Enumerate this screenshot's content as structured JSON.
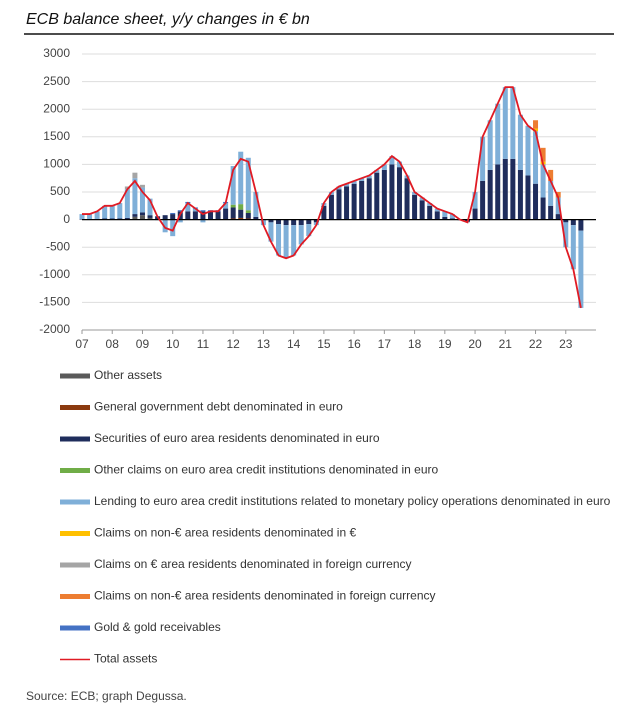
{
  "chart_data": {
    "type": "stacked_bar",
    "title": "ECB balance sheet, y/y changes in € bn",
    "source": "Source: ECB; graph Degussa.",
    "x": [
      2007,
      2007.25,
      2007.5,
      2007.75,
      2008,
      2008.25,
      2008.5,
      2008.75,
      2009,
      2009.25,
      2009.5,
      2009.75,
      2010,
      2010.25,
      2010.5,
      2010.75,
      2011,
      2011.25,
      2011.5,
      2011.75,
      2012,
      2012.25,
      2012.5,
      2012.75,
      2013,
      2013.25,
      2013.5,
      2013.75,
      2014,
      2014.25,
      2014.5,
      2014.75,
      2015,
      2015.25,
      2015.5,
      2015.75,
      2016,
      2016.25,
      2016.5,
      2016.75,
      2017,
      2017.25,
      2017.5,
      2017.75,
      2018,
      2018.25,
      2018.5,
      2018.75,
      2019,
      2019.25,
      2019.5,
      2019.75,
      2020,
      2020.25,
      2020.5,
      2020.75,
      2021,
      2021.25,
      2021.5,
      2021.75,
      2022,
      2022.25,
      2022.5,
      2022.75,
      2023,
      2023.25,
      2023.5
    ],
    "xlim": [
      2007,
      2024
    ],
    "xticks": [
      {
        "value": 2007,
        "label": "07"
      },
      {
        "value": 2008,
        "label": "08"
      },
      {
        "value": 2009,
        "label": "09"
      },
      {
        "value": 2010,
        "label": "10"
      },
      {
        "value": 2011,
        "label": "11"
      },
      {
        "value": 2012,
        "label": "12"
      },
      {
        "value": 2013,
        "label": "13"
      },
      {
        "value": 2014,
        "label": "14"
      },
      {
        "value": 2015,
        "label": "15"
      },
      {
        "value": 2016,
        "label": "16"
      },
      {
        "value": 2017,
        "label": "17"
      },
      {
        "value": 2018,
        "label": "18"
      },
      {
        "value": 2019,
        "label": "19"
      },
      {
        "value": 2020,
        "label": "20"
      },
      {
        "value": 2021,
        "label": "21"
      },
      {
        "value": 2022,
        "label": "22"
      },
      {
        "value": 2023,
        "label": "23"
      }
    ],
    "ylim": [
      -2000,
      3000
    ],
    "yticks": [
      -2000,
      -1500,
      -1000,
      -500,
      0,
      500,
      1000,
      1500,
      2000,
      2500,
      3000
    ],
    "grid": true,
    "series": [
      {
        "name": "Other assets",
        "color": "#5a5a5a",
        "values": [
          0,
          0,
          0,
          0,
          0,
          0,
          0,
          50,
          80,
          30,
          0,
          0,
          0,
          0,
          0,
          0,
          0,
          0,
          0,
          0,
          0,
          0,
          0,
          0,
          0,
          0,
          0,
          0,
          0,
          0,
          0,
          0,
          0,
          0,
          0,
          0,
          0,
          0,
          0,
          0,
          0,
          0,
          0,
          0,
          0,
          0,
          0,
          0,
          0,
          0,
          0,
          0,
          0,
          0,
          0,
          0,
          0,
          0,
          0,
          0,
          0,
          0,
          0,
          0,
          0,
          0,
          0
        ]
      },
      {
        "name": "General government debt denominated in euro",
        "color": "#8b3a0f",
        "values": [
          0,
          0,
          0,
          0,
          0,
          0,
          0,
          0,
          0,
          0,
          0,
          0,
          0,
          0,
          0,
          0,
          0,
          0,
          0,
          0,
          20,
          30,
          20,
          0,
          0,
          0,
          0,
          0,
          0,
          0,
          0,
          0,
          0,
          0,
          0,
          0,
          0,
          0,
          0,
          0,
          0,
          0,
          0,
          0,
          0,
          0,
          0,
          0,
          0,
          0,
          0,
          0,
          0,
          0,
          0,
          0,
          0,
          0,
          0,
          0,
          0,
          0,
          0,
          0,
          0,
          0,
          0
        ]
      },
      {
        "name": "Securities of euro area residents denominated in euro",
        "color": "#1f2d5c",
        "values": [
          10,
          10,
          10,
          20,
          20,
          20,
          30,
          50,
          50,
          50,
          60,
          80,
          100,
          150,
          150,
          150,
          150,
          150,
          150,
          200,
          200,
          150,
          100,
          50,
          0,
          -50,
          -80,
          -100,
          -100,
          -100,
          -80,
          -50,
          250,
          450,
          550,
          600,
          650,
          700,
          750,
          850,
          900,
          1000,
          950,
          750,
          450,
          350,
          250,
          150,
          50,
          20,
          -10,
          -40,
          200,
          700,
          900,
          1000,
          1100,
          1100,
          900,
          800,
          650,
          400,
          250,
          100,
          -50,
          -100,
          -200
        ]
      },
      {
        "name": "Other claims on euro area credit institutions denominated in euro",
        "color": "#70ad47",
        "values": [
          0,
          0,
          0,
          0,
          0,
          0,
          0,
          0,
          0,
          0,
          0,
          0,
          0,
          0,
          0,
          0,
          0,
          0,
          0,
          0,
          50,
          100,
          50,
          0,
          0,
          0,
          0,
          0,
          0,
          0,
          0,
          0,
          0,
          0,
          0,
          0,
          0,
          0,
          0,
          0,
          0,
          0,
          0,
          0,
          0,
          0,
          0,
          0,
          0,
          0,
          0,
          0,
          0,
          0,
          0,
          0,
          0,
          0,
          0,
          0,
          0,
          0,
          0,
          0,
          0,
          0,
          0
        ]
      },
      {
        "name": "Lending to euro area credit institutions related to monetary policy operations denominated in euro",
        "color": "#7fafd8",
        "values": [
          90,
          90,
          140,
          230,
          230,
          280,
          520,
          650,
          450,
          300,
          -10,
          -230,
          -300,
          -50,
          150,
          50,
          -50,
          0,
          0,
          100,
          700,
          950,
          950,
          450,
          -100,
          -350,
          -570,
          -600,
          -550,
          -350,
          -220,
          -50,
          50,
          50,
          50,
          50,
          50,
          50,
          50,
          50,
          100,
          150,
          100,
          50,
          50,
          50,
          50,
          50,
          100,
          80,
          10,
          -10,
          300,
          800,
          900,
          1100,
          1300,
          1300,
          1000,
          900,
          950,
          600,
          450,
          300,
          -450,
          -800,
          -1400
        ]
      },
      {
        "name": "Claims on non-€ area residents denominated in €",
        "color": "#ffc000",
        "values": [
          0,
          0,
          0,
          0,
          0,
          0,
          0,
          0,
          0,
          0,
          0,
          0,
          0,
          0,
          0,
          0,
          0,
          0,
          0,
          0,
          0,
          0,
          0,
          0,
          0,
          0,
          0,
          0,
          0,
          0,
          0,
          0,
          0,
          0,
          0,
          0,
          0,
          0,
          0,
          0,
          0,
          0,
          0,
          0,
          0,
          0,
          0,
          0,
          0,
          0,
          0,
          0,
          0,
          0,
          0,
          0,
          0,
          0,
          0,
          0,
          50,
          50,
          0,
          0,
          0,
          0,
          0
        ]
      },
      {
        "name": "Claims on € area residents denominated in foreign currency",
        "color": "#a5a5a5",
        "values": [
          0,
          0,
          0,
          0,
          0,
          0,
          50,
          100,
          50,
          0,
          0,
          0,
          0,
          0,
          0,
          0,
          0,
          0,
          0,
          0,
          0,
          0,
          0,
          0,
          0,
          0,
          0,
          0,
          0,
          0,
          0,
          0,
          0,
          0,
          0,
          0,
          0,
          0,
          0,
          0,
          0,
          0,
          0,
          0,
          0,
          0,
          0,
          0,
          0,
          0,
          0,
          0,
          0,
          0,
          0,
          0,
          0,
          0,
          0,
          0,
          0,
          0,
          0,
          0,
          0,
          0,
          0
        ]
      },
      {
        "name": "Claims on non-€ area residents denominated in foreign currency",
        "color": "#ed7d31",
        "values": [
          0,
          0,
          0,
          0,
          0,
          0,
          0,
          0,
          0,
          0,
          0,
          0,
          0,
          0,
          0,
          0,
          0,
          0,
          0,
          0,
          0,
          0,
          0,
          0,
          0,
          0,
          0,
          0,
          0,
          0,
          0,
          0,
          0,
          0,
          0,
          0,
          0,
          0,
          0,
          0,
          0,
          0,
          0,
          0,
          0,
          0,
          0,
          0,
          0,
          0,
          0,
          0,
          0,
          0,
          0,
          0,
          0,
          0,
          0,
          0,
          150,
          250,
          200,
          100,
          0,
          0,
          0
        ]
      },
      {
        "name": "Gold & gold receivables",
        "color": "#4472c4",
        "values": [
          0,
          0,
          0,
          0,
          0,
          0,
          0,
          0,
          0,
          0,
          0,
          0,
          20,
          20,
          20,
          20,
          20,
          20,
          20,
          20,
          0,
          0,
          0,
          0,
          0,
          0,
          0,
          0,
          0,
          0,
          0,
          0,
          0,
          0,
          0,
          0,
          0,
          0,
          0,
          0,
          0,
          0,
          0,
          0,
          0,
          0,
          0,
          0,
          0,
          0,
          0,
          0,
          0,
          0,
          0,
          0,
          0,
          0,
          0,
          0,
          0,
          0,
          0,
          0,
          0,
          0,
          0
        ]
      },
      {
        "name": "Total assets",
        "color": "#e01b24",
        "type": "line",
        "values": [
          100,
          100,
          150,
          250,
          250,
          300,
          550,
          700,
          500,
          350,
          50,
          -150,
          -200,
          100,
          300,
          200,
          100,
          150,
          150,
          300,
          900,
          1100,
          1050,
          500,
          -100,
          -400,
          -650,
          -700,
          -650,
          -450,
          -300,
          -100,
          300,
          500,
          600,
          650,
          700,
          750,
          800,
          900,
          1000,
          1150,
          1050,
          800,
          500,
          400,
          300,
          200,
          150,
          100,
          0,
          -50,
          500,
          1500,
          1800,
          2100,
          2400,
          2400,
          1900,
          1700,
          1600,
          1000,
          700,
          400,
          -500,
          -900,
          -1600
        ]
      }
    ]
  }
}
